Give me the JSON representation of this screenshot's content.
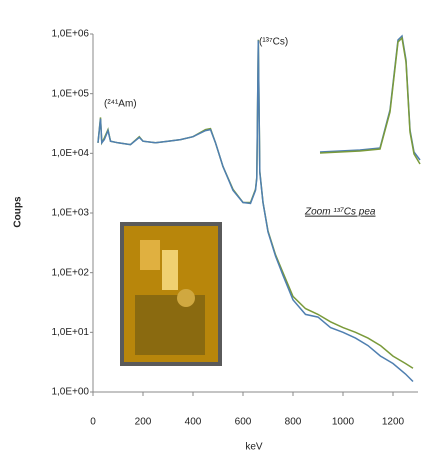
{
  "chart_data": {
    "type": "line",
    "xlabel": "keV",
    "ylabel": "Coups",
    "annotations": [
      "(²⁴¹Am)",
      "(¹³⁷Cs)",
      "Zoom ¹³⁷Cs pea"
    ],
    "yscale": "log",
    "xlim": [
      0,
      1300
    ],
    "xticks": [
      0,
      200,
      400,
      600,
      800,
      1000,
      1200
    ],
    "ylim": [
      1,
      1000000
    ],
    "yticks": [
      {
        "value": 1,
        "label": "1,0E+00"
      },
      {
        "value": 10,
        "label": "1,0E+01"
      },
      {
        "value": 100,
        "label": "1,0E+02"
      },
      {
        "value": 1000,
        "label": "1,0E+03"
      },
      {
        "value": 10000,
        "label": "1,0E+04"
      },
      {
        "value": 100000,
        "label": "1,0E+05"
      },
      {
        "value": 1000000,
        "label": "1,0E+06"
      }
    ],
    "x": [
      20,
      30,
      35,
      45,
      60,
      70,
      100,
      150,
      185,
      200,
      250,
      300,
      350,
      400,
      450,
      470,
      490,
      520,
      560,
      600,
      630,
      650,
      655,
      661,
      667,
      680,
      700,
      730,
      760,
      800,
      850,
      900,
      950,
      1000,
      1050,
      1100,
      1150,
      1200,
      1250,
      1280
    ],
    "series": [
      {
        "color": "#7a9a3a",
        "values": [
          15000,
          40000,
          15000,
          18000,
          25000,
          16000,
          15000,
          14000,
          19000,
          16000,
          15000,
          16000,
          17000,
          19000,
          25000,
          26000,
          15000,
          6000,
          2500,
          1500,
          1500,
          2500,
          4000,
          800000,
          5000,
          1500,
          500,
          200,
          100,
          40,
          25,
          20,
          15,
          12,
          10,
          8,
          6,
          4,
          3,
          2.5
        ]
      },
      {
        "color": "#4f7fb0",
        "values": [
          15000,
          38000,
          15000,
          17000,
          24000,
          16000,
          15000,
          14000,
          18500,
          16000,
          15000,
          16000,
          17000,
          19000,
          24000,
          25000,
          15000,
          6000,
          2400,
          1500,
          1450,
          2400,
          3800,
          780000,
          4800,
          1500,
          480,
          190,
          90,
          35,
          20,
          18,
          12,
          10,
          8,
          6,
          4,
          3,
          2,
          1.5
        ]
      }
    ]
  }
}
